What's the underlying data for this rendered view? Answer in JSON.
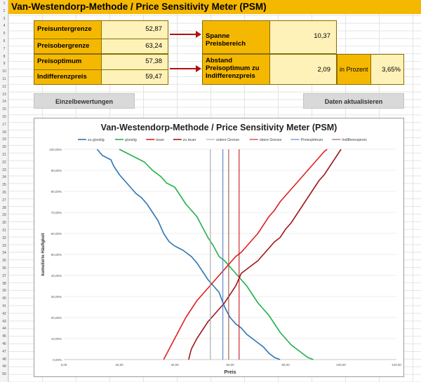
{
  "title": "Van-Westendorp-Methode / Price Sensitivity Meter (PSM)",
  "row_numbers": [
    "1",
    "2",
    "3",
    "4",
    "5",
    "6",
    "7",
    "8",
    "9",
    "10",
    "11",
    "12",
    "13",
    "14",
    "15",
    "16",
    "17",
    "18",
    "19",
    "20",
    "21",
    "22",
    "23",
    "24",
    "25",
    "26",
    "27",
    "28",
    "29",
    "30",
    "31",
    "32",
    "33",
    "34",
    "35",
    "36",
    "37",
    "38",
    "39",
    "40",
    "41",
    "42",
    "43",
    "44",
    "45",
    "46",
    "47",
    "48",
    "49",
    "50"
  ],
  "results": {
    "preisuntergrenze_label": "Preisuntergrenze",
    "preisuntergrenze_value": "52,87",
    "preisobergrenze_label": "Preisobergrenze",
    "preisobergrenze_value": "63,24",
    "preisoptimum_label": "Preisoptimum",
    "preisoptimum_value": "57,38",
    "indifferenzpreis_label": "Indifferenzpreis",
    "indifferenzpreis_value": "59,47",
    "spanne_label": "Spanne Preisbereich",
    "spanne_value": "10,37",
    "abstand_label_1": "Abstand",
    "abstand_label_2": "Preisoptimum zu",
    "abstand_label_3": "Indifferenzpreis",
    "abstand_value": "2,09",
    "prozent_label": "in Prozent",
    "prozent_value": "3,65%"
  },
  "buttons": {
    "einzelbewertungen": "Einzelbewertungen",
    "daten_aktualisieren": "Daten aktualisieren"
  },
  "colors": {
    "header_gold": "#f5b800",
    "cell_light": "#fff2b8",
    "arrow_red": "#b01010"
  },
  "chart_data": {
    "type": "line",
    "title": "Van-Westendorp-Methode / Price Sensitivity Meter (PSM)",
    "xlabel": "Preis",
    "ylabel": "kumulierte Häufigkeit",
    "xlim": [
      0,
      120
    ],
    "ylim": [
      0,
      100
    ],
    "x_ticks": [
      "0,00",
      "20,00",
      "40,00",
      "60,00",
      "80,00",
      "100,00",
      "120,00"
    ],
    "y_ticks": [
      "0,00%",
      "10,00%",
      "20,00%",
      "30,00%",
      "40,00%",
      "50,00%",
      "60,00%",
      "70,00%",
      "80,00%",
      "90,00%",
      "100,00%"
    ],
    "legend_position": "top",
    "grid": true,
    "series": [
      {
        "name": "zu günstig",
        "color": "#2e75b6",
        "points": [
          [
            12,
            100
          ],
          [
            14,
            97
          ],
          [
            17,
            95
          ],
          [
            18,
            92
          ],
          [
            20,
            88
          ],
          [
            22,
            85
          ],
          [
            24,
            82
          ],
          [
            26,
            79
          ],
          [
            28,
            77
          ],
          [
            30,
            74
          ],
          [
            32,
            70
          ],
          [
            34,
            66
          ],
          [
            36,
            60
          ],
          [
            38,
            56
          ],
          [
            40,
            54
          ],
          [
            43,
            52
          ],
          [
            46,
            49
          ],
          [
            48,
            46
          ],
          [
            50,
            42
          ],
          [
            52,
            38
          ],
          [
            54,
            35
          ],
          [
            56,
            32
          ],
          [
            58,
            25
          ],
          [
            60,
            20
          ],
          [
            62,
            17
          ],
          [
            64,
            15
          ],
          [
            66,
            12
          ],
          [
            68,
            10
          ],
          [
            70,
            8
          ],
          [
            72,
            6
          ],
          [
            74,
            3
          ],
          [
            76,
            1
          ],
          [
            78,
            0
          ]
        ]
      },
      {
        "name": "günstig",
        "color": "#22b14c",
        "points": [
          [
            20,
            100
          ],
          [
            23,
            98
          ],
          [
            26,
            96
          ],
          [
            29,
            94
          ],
          [
            32,
            90
          ],
          [
            35,
            87
          ],
          [
            37,
            84
          ],
          [
            40,
            82
          ],
          [
            42,
            78
          ],
          [
            44,
            74
          ],
          [
            46,
            71
          ],
          [
            48,
            68
          ],
          [
            50,
            63
          ],
          [
            52,
            58
          ],
          [
            54,
            54
          ],
          [
            56,
            49
          ],
          [
            58,
            47
          ],
          [
            60,
            44
          ],
          [
            62,
            41
          ],
          [
            64,
            38
          ],
          [
            66,
            35
          ],
          [
            68,
            31
          ],
          [
            70,
            27
          ],
          [
            72,
            24
          ],
          [
            74,
            21
          ],
          [
            76,
            17
          ],
          [
            78,
            13
          ],
          [
            80,
            10
          ],
          [
            82,
            7
          ],
          [
            84,
            5
          ],
          [
            86,
            3
          ],
          [
            88,
            1
          ],
          [
            90,
            0
          ]
        ]
      },
      {
        "name": "teuer",
        "color": "#e02020",
        "points": [
          [
            36,
            0
          ],
          [
            38,
            5
          ],
          [
            40,
            10
          ],
          [
            42,
            15
          ],
          [
            44,
            20
          ],
          [
            46,
            24
          ],
          [
            48,
            28
          ],
          [
            50,
            31
          ],
          [
            52,
            34
          ],
          [
            54,
            37
          ],
          [
            56,
            40
          ],
          [
            58,
            43
          ],
          [
            60,
            46
          ],
          [
            62,
            49
          ],
          [
            64,
            51
          ],
          [
            66,
            54
          ],
          [
            68,
            57
          ],
          [
            70,
            60
          ],
          [
            72,
            64
          ],
          [
            74,
            68
          ],
          [
            76,
            71
          ],
          [
            78,
            75
          ],
          [
            80,
            78
          ],
          [
            82,
            81
          ],
          [
            84,
            84
          ],
          [
            86,
            87
          ],
          [
            88,
            90
          ],
          [
            90,
            93
          ],
          [
            92,
            96
          ],
          [
            94,
            99
          ],
          [
            95,
            100
          ]
        ]
      },
      {
        "name": "zu teuer",
        "color": "#a01818",
        "points": [
          [
            45,
            0
          ],
          [
            46,
            5
          ],
          [
            48,
            10
          ],
          [
            50,
            14
          ],
          [
            52,
            18
          ],
          [
            54,
            21
          ],
          [
            56,
            24
          ],
          [
            58,
            27
          ],
          [
            60,
            31
          ],
          [
            62,
            35
          ],
          [
            63,
            38
          ],
          [
            64,
            41
          ],
          [
            66,
            43
          ],
          [
            68,
            45
          ],
          [
            70,
            47
          ],
          [
            72,
            50
          ],
          [
            74,
            53
          ],
          [
            76,
            56
          ],
          [
            78,
            58
          ],
          [
            80,
            62
          ],
          [
            82,
            65
          ],
          [
            84,
            69
          ],
          [
            86,
            73
          ],
          [
            88,
            77
          ],
          [
            90,
            81
          ],
          [
            92,
            85
          ],
          [
            94,
            88
          ],
          [
            96,
            92
          ],
          [
            98,
            96
          ],
          [
            100,
            100
          ]
        ]
      },
      {
        "name": "untere Grenze",
        "color": "#9e9e9e",
        "vline": 52.87
      },
      {
        "name": "obere Grenze",
        "color": "#c00000",
        "vline": 63.24
      },
      {
        "name": "Preisoptimum",
        "color": "#4472c4",
        "vline": 57.38
      },
      {
        "name": "Indifferenzpreis",
        "color": "#8c4a2f",
        "vline": 59.47
      }
    ]
  }
}
